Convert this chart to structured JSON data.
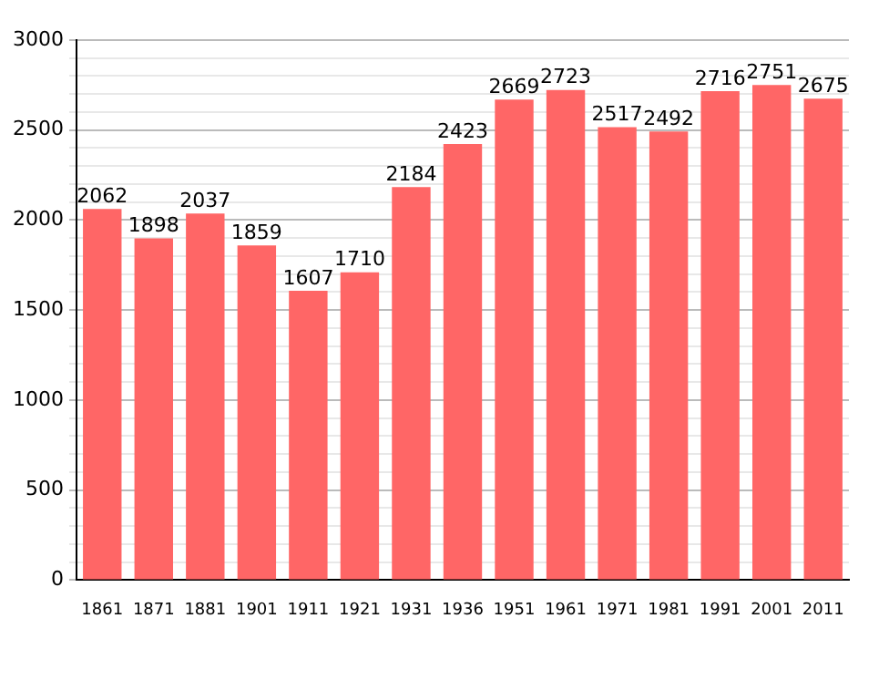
{
  "chart_data": {
    "type": "bar",
    "categories": [
      "1861",
      "1871",
      "1881",
      "1901",
      "1911",
      "1921",
      "1931",
      "1936",
      "1951",
      "1961",
      "1971",
      "1981",
      "1991",
      "2001",
      "2011"
    ],
    "values": [
      2062,
      1898,
      2037,
      1859,
      1607,
      1710,
      2184,
      2423,
      2669,
      2723,
      2517,
      2492,
      2716,
      2751,
      2675
    ],
    "color": "#ff6666",
    "ylim": [
      0,
      3000
    ],
    "yticks": [
      0,
      {
        "value": 100,
        "label": null
      },
      {
        "value": 200,
        "label": null
      },
      {
        "value": 300,
        "label": null
      },
      {
        "value": 400,
        "label": null
      },
      500,
      {
        "value": 600,
        "label": null
      },
      {
        "value": 700,
        "label": null
      },
      {
        "value": 800,
        "label": null
      },
      {
        "value": 900,
        "label": null
      },
      1000,
      {
        "value": 1100,
        "label": null
      },
      {
        "value": 1200,
        "label": null
      },
      {
        "value": 1300,
        "label": null
      },
      {
        "value": 1400,
        "label": null
      },
      1500,
      {
        "value": 1600,
        "label": null
      },
      {
        "value": 1700,
        "label": null
      },
      {
        "value": 1800,
        "label": null
      },
      {
        "value": 1900,
        "label": null
      },
      2000,
      {
        "value": 2100,
        "label": null
      },
      {
        "value": 2200,
        "label": null
      },
      {
        "value": 2300,
        "label": null
      },
      {
        "value": 2400,
        "label": null
      },
      2500,
      {
        "value": 2600,
        "label": null
      },
      {
        "value": 2700,
        "label": null
      },
      {
        "value": 2800,
        "label": null
      },
      {
        "value": 2900,
        "label": null
      },
      3000
    ],
    "grid": "y",
    "data_labels": true
  }
}
